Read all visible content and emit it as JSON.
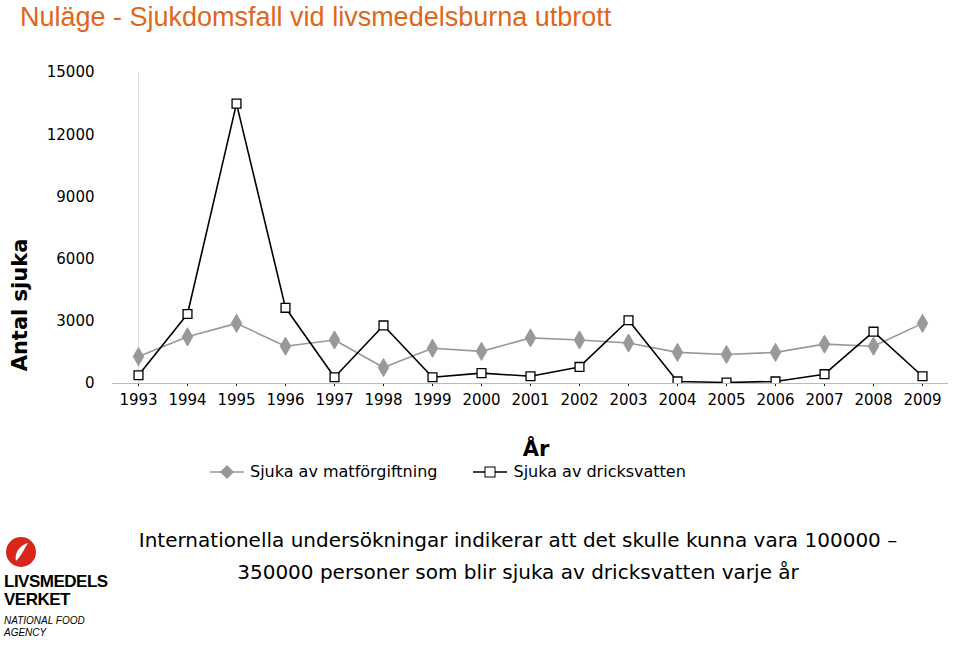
{
  "chart_data": {
    "type": "line",
    "title": "Nuläge - Sjukdomsfall vid livsmedelsburna utbrott",
    "y_label": "Antal sjuka",
    "x_label": "År",
    "categories": [
      "1993",
      "1994",
      "1995",
      "1996",
      "1997",
      "1998",
      "1999",
      "2000",
      "2001",
      "2002",
      "2003",
      "2004",
      "2005",
      "2006",
      "2007",
      "2008",
      "2009"
    ],
    "series": [
      {
        "name": "Sjuka av matförgiftning",
        "color": "#999999",
        "marker": "diamond",
        "line_style": "solid",
        "values": [
          1300,
          2250,
          2900,
          1800,
          2100,
          770,
          1700,
          1550,
          2200,
          2100,
          1950,
          1500,
          1400,
          1500,
          1900,
          1800,
          2900
        ]
      },
      {
        "name": "Sjuka av dricksvatten",
        "color": "#000000",
        "marker": "square",
        "line_style": "solid",
        "values": [
          400,
          3350,
          13500,
          3650,
          300,
          2800,
          300,
          500,
          350,
          800,
          3050,
          100,
          50,
          100,
          450,
          2500,
          350
        ]
      }
    ],
    "ylim": [
      0,
      15000
    ],
    "yticks": [
      0,
      3000,
      6000,
      9000,
      12000,
      15000
    ],
    "grid": false,
    "legend": "bottom",
    "annotations": [
      "Internationella undersökningar indikerar att det skulle kunna vara 100000 –",
      "350000 personer som blir sjuka av dricksvatten varje år"
    ],
    "logo": [
      "LIVSMEDELS",
      "VERKET",
      "NATIONAL FOOD",
      "AGENCY"
    ]
  }
}
